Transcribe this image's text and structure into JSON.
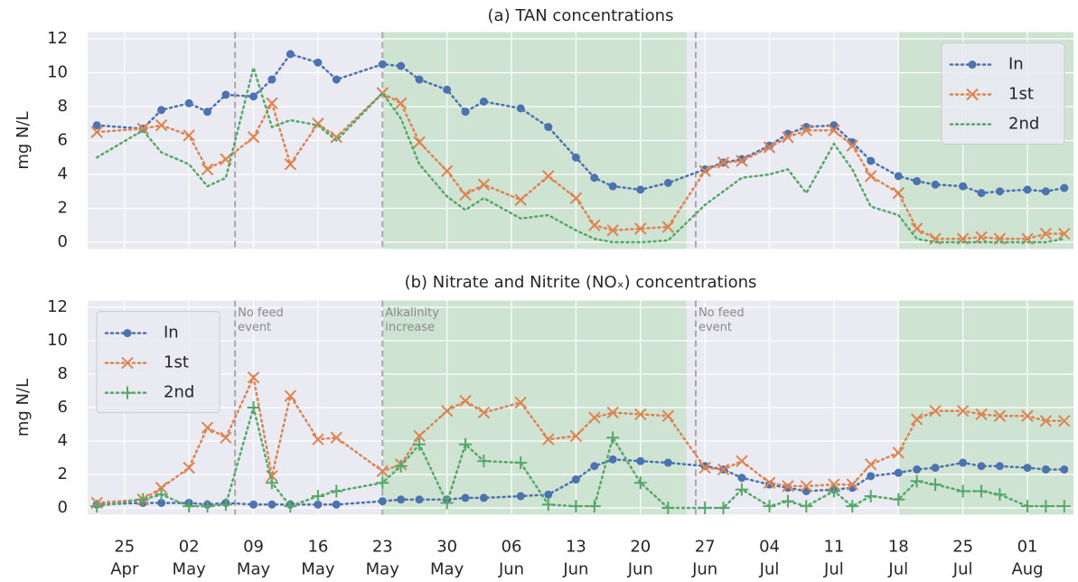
{
  "chart_data": [
    {
      "type": "line",
      "title": "(a) TAN concentrations",
      "ylabel": "mg N/L",
      "xlim": [
        "04-21",
        "08-06"
      ],
      "ylim": [
        -0.4,
        12.4
      ],
      "yticks": [
        0,
        2,
        4,
        6,
        8,
        10,
        12
      ],
      "xticks": [
        "04-25",
        "05-02",
        "05-09",
        "05-16",
        "05-23",
        "05-30",
        "06-06",
        "06-13",
        "06-20",
        "06-27",
        "07-04",
        "07-11",
        "07-18",
        "07-25",
        "08-01"
      ],
      "grid": true,
      "legend": "upper right",
      "spans": [
        {
          "from": "05-23",
          "to": "06-25"
        },
        {
          "from": "07-18",
          "to": "08-06"
        }
      ],
      "span_color": "#cfe3d3",
      "vlines": [
        "05-07",
        "05-23",
        "06-26"
      ],
      "x": [
        "04-22",
        "04-27",
        "04-29",
        "05-02",
        "05-04",
        "05-06",
        "05-09",
        "05-11",
        "05-13",
        "05-16",
        "05-18",
        "05-23",
        "05-25",
        "05-27",
        "05-30",
        "06-01",
        "06-03",
        "06-07",
        "06-10",
        "06-13",
        "06-15",
        "06-17",
        "06-20",
        "06-23",
        "06-27",
        "06-29",
        "07-01",
        "07-04",
        "07-06",
        "07-08",
        "07-11",
        "07-13",
        "07-15",
        "07-18",
        "07-20",
        "07-22",
        "07-25",
        "07-27",
        "07-29",
        "08-01",
        "08-03",
        "08-05"
      ],
      "series": [
        {
          "name": "In",
          "color": "#4c72b0",
          "marker": "o",
          "values": [
            6.9,
            6.7,
            7.8,
            8.2,
            7.7,
            8.7,
            8.6,
            9.6,
            11.1,
            10.6,
            9.6,
            10.5,
            10.4,
            9.6,
            9.0,
            7.7,
            8.3,
            7.9,
            6.8,
            5.0,
            3.8,
            3.3,
            3.1,
            3.5,
            4.3,
            4.7,
            4.9,
            5.7,
            6.4,
            6.8,
            6.9,
            5.9,
            4.8,
            3.9,
            3.6,
            3.4,
            3.3,
            2.9,
            3.0,
            3.1,
            3.0,
            3.2
          ]
        },
        {
          "name": "1st",
          "color": "#dd8452",
          "marker": "x",
          "values": [
            6.5,
            6.7,
            6.9,
            6.3,
            4.3,
            4.9,
            6.2,
            8.2,
            4.6,
            7.0,
            6.2,
            8.8,
            8.2,
            5.9,
            4.2,
            2.8,
            3.4,
            2.5,
            3.9,
            2.6,
            1.0,
            0.7,
            0.8,
            0.9,
            4.2,
            4.7,
            4.8,
            5.6,
            6.2,
            6.6,
            6.6,
            5.7,
            3.9,
            2.9,
            0.8,
            0.2,
            0.2,
            0.3,
            0.2,
            0.2,
            0.5,
            0.5
          ]
        },
        {
          "name": "2nd",
          "color": "#55a868",
          "marker": "none",
          "values": [
            5.0,
            6.6,
            5.3,
            4.6,
            3.3,
            3.8,
            10.3,
            6.8,
            7.2,
            6.9,
            6.0,
            8.8,
            7.3,
            4.6,
            2.7,
            1.9,
            2.6,
            1.4,
            1.6,
            0.7,
            0.2,
            0.0,
            0.0,
            0.1,
            2.2,
            3.0,
            3.8,
            4.0,
            4.3,
            2.9,
            5.8,
            4.3,
            2.1,
            1.6,
            0.2,
            0.0,
            0.0,
            0.0,
            0.0,
            0.0,
            0.0,
            0.2
          ]
        }
      ]
    },
    {
      "type": "line",
      "title": "(b) Nitrate and Nitrite (NOₓ) concentrations",
      "ylabel": "mg N/L",
      "xlim": [
        "04-21",
        "08-06"
      ],
      "ylim": [
        -0.4,
        12.4
      ],
      "yticks": [
        0,
        2,
        4,
        6,
        8,
        10,
        12
      ],
      "xticks": [
        {
          "value": "04-25",
          "label": [
            "25",
            "Apr"
          ]
        },
        {
          "value": "05-02",
          "label": [
            "02",
            "May"
          ]
        },
        {
          "value": "05-09",
          "label": [
            "09",
            "May"
          ]
        },
        {
          "value": "05-16",
          "label": [
            "16",
            "May"
          ]
        },
        {
          "value": "05-23",
          "label": [
            "23",
            "May"
          ]
        },
        {
          "value": "05-30",
          "label": [
            "30",
            "May"
          ]
        },
        {
          "value": "06-06",
          "label": [
            "06",
            "Jun"
          ]
        },
        {
          "value": "06-13",
          "label": [
            "13",
            "Jun"
          ]
        },
        {
          "value": "06-20",
          "label": [
            "20",
            "Jun"
          ]
        },
        {
          "value": "06-27",
          "label": [
            "27",
            "Jun"
          ]
        },
        {
          "value": "07-04",
          "label": [
            "04",
            "Jul"
          ]
        },
        {
          "value": "07-11",
          "label": [
            "11",
            "Jul"
          ]
        },
        {
          "value": "07-18",
          "label": [
            "18",
            "Jul"
          ]
        },
        {
          "value": "07-25",
          "label": [
            "25",
            "Jul"
          ]
        },
        {
          "value": "08-01",
          "label": [
            "01",
            "Aug"
          ]
        }
      ],
      "grid": true,
      "legend": "upper left",
      "spans": [
        {
          "from": "05-23",
          "to": "06-25"
        },
        {
          "from": "07-18",
          "to": "08-06"
        }
      ],
      "span_color": "#cfe3d3",
      "vlines": [
        "05-07",
        "05-23",
        "06-26"
      ],
      "annotations": [
        {
          "x": "05-07",
          "text": [
            "No feed",
            "event"
          ]
        },
        {
          "x": "05-23",
          "text": [
            "Alkalinity",
            "increase"
          ]
        },
        {
          "x": "06-26",
          "text": [
            "No feed",
            "event"
          ]
        }
      ],
      "x": [
        "04-22",
        "04-27",
        "04-29",
        "05-02",
        "05-04",
        "05-06",
        "05-09",
        "05-11",
        "05-13",
        "05-16",
        "05-18",
        "05-23",
        "05-25",
        "05-27",
        "05-30",
        "06-01",
        "06-03",
        "06-07",
        "06-10",
        "06-13",
        "06-15",
        "06-17",
        "06-20",
        "06-23",
        "06-27",
        "06-29",
        "07-01",
        "07-04",
        "07-06",
        "07-08",
        "07-11",
        "07-13",
        "07-15",
        "07-18",
        "07-20",
        "07-22",
        "07-25",
        "07-27",
        "07-29",
        "08-01",
        "08-03",
        "08-05"
      ],
      "series": [
        {
          "name": "In",
          "color": "#4c72b0",
          "marker": "o",
          "values": [
            0.2,
            0.3,
            0.3,
            0.3,
            0.2,
            0.3,
            0.2,
            0.2,
            0.2,
            0.2,
            0.2,
            0.4,
            0.5,
            0.5,
            0.5,
            0.6,
            0.6,
            0.7,
            0.8,
            1.7,
            2.5,
            2.9,
            2.8,
            2.7,
            2.5,
            2.3,
            1.8,
            1.4,
            1.2,
            1.0,
            1.1,
            1.2,
            1.9,
            2.1,
            2.3,
            2.4,
            2.7,
            2.5,
            2.5,
            2.4,
            2.3,
            2.3
          ]
        },
        {
          "name": "1st",
          "color": "#dd8452",
          "marker": "x",
          "values": [
            0.3,
            0.5,
            1.2,
            2.4,
            4.8,
            4.2,
            7.8,
            1.9,
            6.7,
            4.1,
            4.2,
            2.2,
            2.6,
            4.3,
            5.8,
            6.4,
            5.7,
            6.3,
            4.1,
            4.3,
            5.4,
            5.7,
            5.6,
            5.5,
            2.4,
            2.3,
            2.8,
            1.5,
            1.3,
            1.3,
            1.4,
            1.4,
            2.6,
            3.3,
            5.3,
            5.8,
            5.8,
            5.6,
            5.5,
            5.5,
            5.2,
            5.2
          ]
        },
        {
          "name": "2nd",
          "color": "#55a868",
          "marker": "+",
          "values": [
            0.1,
            0.5,
            0.8,
            0.1,
            0.1,
            0.2,
            6.0,
            1.5,
            0.1,
            0.7,
            1.0,
            1.5,
            2.5,
            3.8,
            0.3,
            3.8,
            2.8,
            2.7,
            0.2,
            0.1,
            0.1,
            4.2,
            1.5,
            0.0,
            0.0,
            0.0,
            1.1,
            0.1,
            0.4,
            0.1,
            1.0,
            0.1,
            0.7,
            0.5,
            1.6,
            1.4,
            1.0,
            1.0,
            0.8,
            0.1,
            0.1,
            0.1
          ]
        }
      ]
    }
  ]
}
